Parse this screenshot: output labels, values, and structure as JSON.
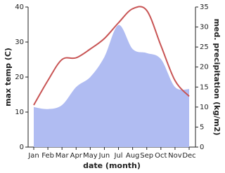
{
  "chart_data": {
    "type": "line",
    "x_label": "date (month)",
    "y_label": "max temp (C)",
    "y2_label": "med. precipitation (kg/m2)",
    "categories": [
      "Jan",
      "Feb",
      "Mar",
      "Apr",
      "May",
      "Jun",
      "Jul",
      "Aug",
      "Sep",
      "Oct",
      "Nov",
      "Dec"
    ],
    "series": [
      {
        "name": "med. precipitation",
        "type": "area",
        "axis": "y2",
        "color": "#b0bcf2",
        "values": [
          10,
          9.5,
          10.5,
          15,
          17.5,
          22.5,
          30.5,
          24.5,
          23.5,
          22,
          15,
          14.5
        ]
      },
      {
        "name": "max temp",
        "type": "line",
        "axis": "y",
        "color": "#c85454",
        "values": [
          12,
          19,
          25,
          25.5,
          28,
          31,
          35.5,
          39.5,
          39,
          29,
          19,
          14.5
        ]
      }
    ],
    "ylim": [
      0,
      40
    ],
    "yticks": [
      0,
      10,
      20,
      30,
      40
    ],
    "y2lim": [
      0,
      35
    ],
    "y2ticks": [
      0,
      5,
      10,
      15,
      20,
      25,
      30,
      35
    ]
  }
}
